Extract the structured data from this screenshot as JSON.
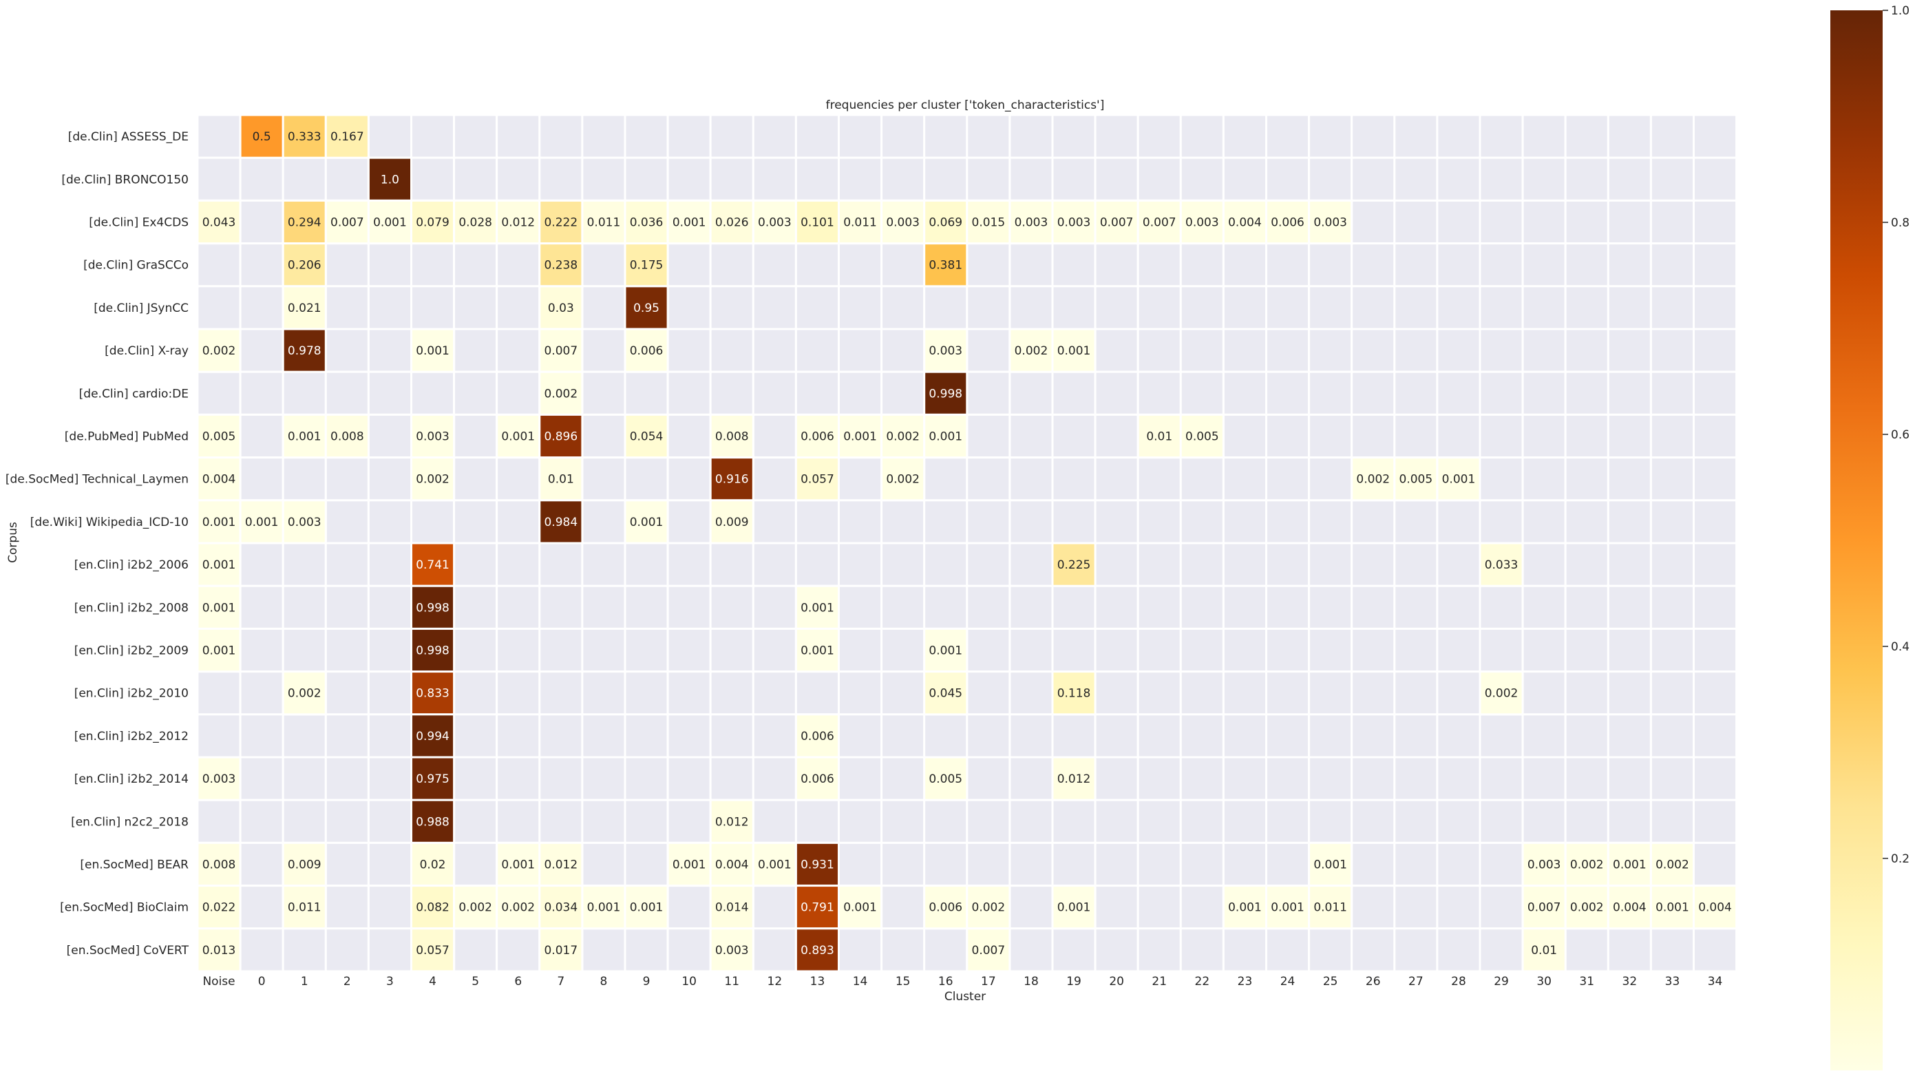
{
  "chart_data": {
    "type": "heatmap",
    "title": "frequencies per cluster ['token_characteristics']",
    "xlabel": "Cluster",
    "ylabel": "Corpus",
    "columns": [
      "Noise",
      "0",
      "1",
      "2",
      "3",
      "4",
      "5",
      "6",
      "7",
      "8",
      "9",
      "10",
      "11",
      "12",
      "13",
      "14",
      "15",
      "16",
      "17",
      "18",
      "19",
      "20",
      "21",
      "22",
      "23",
      "24",
      "25",
      "26",
      "27",
      "28",
      "29",
      "30",
      "31",
      "32",
      "33",
      "34"
    ],
    "rows": [
      "[de.Clin] ASSESS_DE",
      "[de.Clin] BRONCO150",
      "[de.Clin] Ex4CDS",
      "[de.Clin] GraSCCo",
      "[de.Clin] JSynCC",
      "[de.Clin] X-ray",
      "[de.Clin] cardio:DE",
      "[de.PubMed] PubMed",
      "[de.SocMed] Technical_Laymen",
      "[de.Wiki] Wikipedia_ICD-10",
      "[en.Clin] i2b2_2006",
      "[en.Clin] i2b2_2008",
      "[en.Clin] i2b2_2009",
      "[en.Clin] i2b2_2010",
      "[en.Clin] i2b2_2012",
      "[en.Clin] i2b2_2014",
      "[en.Clin] n2c2_2018",
      "[en.SocMed] BEAR",
      "[en.SocMed] BioClaim",
      "[en.SocMed] CoVERT"
    ],
    "cells": [
      [
        0,
        1,
        "0.5"
      ],
      [
        0,
        2,
        "0.333"
      ],
      [
        0,
        3,
        "0.167"
      ],
      [
        1,
        4,
        "1.0"
      ],
      [
        2,
        0,
        "0.043"
      ],
      [
        2,
        2,
        "0.294"
      ],
      [
        2,
        3,
        "0.007"
      ],
      [
        2,
        4,
        "0.001"
      ],
      [
        2,
        5,
        "0.079"
      ],
      [
        2,
        6,
        "0.028"
      ],
      [
        2,
        7,
        "0.012"
      ],
      [
        2,
        8,
        "0.222"
      ],
      [
        2,
        9,
        "0.011"
      ],
      [
        2,
        10,
        "0.036"
      ],
      [
        2,
        11,
        "0.001"
      ],
      [
        2,
        12,
        "0.026"
      ],
      [
        2,
        13,
        "0.003"
      ],
      [
        2,
        14,
        "0.101"
      ],
      [
        2,
        15,
        "0.011"
      ],
      [
        2,
        16,
        "0.003"
      ],
      [
        2,
        17,
        "0.069"
      ],
      [
        2,
        18,
        "0.015"
      ],
      [
        2,
        19,
        "0.003"
      ],
      [
        2,
        20,
        "0.003"
      ],
      [
        2,
        21,
        "0.007"
      ],
      [
        2,
        22,
        "0.007"
      ],
      [
        2,
        23,
        "0.003"
      ],
      [
        2,
        24,
        "0.004"
      ],
      [
        2,
        25,
        "0.006"
      ],
      [
        2,
        26,
        "0.003"
      ],
      [
        3,
        2,
        "0.206"
      ],
      [
        3,
        8,
        "0.238"
      ],
      [
        3,
        10,
        "0.175"
      ],
      [
        3,
        17,
        "0.381"
      ],
      [
        4,
        2,
        "0.021"
      ],
      [
        4,
        8,
        "0.03"
      ],
      [
        4,
        10,
        "0.95"
      ],
      [
        5,
        0,
        "0.002"
      ],
      [
        5,
        2,
        "0.978"
      ],
      [
        5,
        5,
        "0.001"
      ],
      [
        5,
        8,
        "0.007"
      ],
      [
        5,
        10,
        "0.006"
      ],
      [
        5,
        17,
        "0.003"
      ],
      [
        5,
        19,
        "0.002"
      ],
      [
        5,
        20,
        "0.001"
      ],
      [
        6,
        8,
        "0.002"
      ],
      [
        6,
        17,
        "0.998"
      ],
      [
        7,
        0,
        "0.005"
      ],
      [
        7,
        2,
        "0.001"
      ],
      [
        7,
        3,
        "0.008"
      ],
      [
        7,
        5,
        "0.003"
      ],
      [
        7,
        7,
        "0.001"
      ],
      [
        7,
        8,
        "0.896"
      ],
      [
        7,
        10,
        "0.054"
      ],
      [
        7,
        12,
        "0.008"
      ],
      [
        7,
        14,
        "0.006"
      ],
      [
        7,
        15,
        "0.001"
      ],
      [
        7,
        16,
        "0.002"
      ],
      [
        7,
        17,
        "0.001"
      ],
      [
        7,
        22,
        "0.01"
      ],
      [
        7,
        23,
        "0.005"
      ],
      [
        8,
        0,
        "0.004"
      ],
      [
        8,
        5,
        "0.002"
      ],
      [
        8,
        8,
        "0.01"
      ],
      [
        8,
        12,
        "0.916"
      ],
      [
        8,
        14,
        "0.057"
      ],
      [
        8,
        16,
        "0.002"
      ],
      [
        8,
        27,
        "0.002"
      ],
      [
        8,
        28,
        "0.005"
      ],
      [
        8,
        29,
        "0.001"
      ],
      [
        9,
        0,
        "0.001"
      ],
      [
        9,
        1,
        "0.001"
      ],
      [
        9,
        2,
        "0.003"
      ],
      [
        9,
        8,
        "0.984"
      ],
      [
        9,
        10,
        "0.001"
      ],
      [
        9,
        12,
        "0.009"
      ],
      [
        10,
        0,
        "0.001"
      ],
      [
        10,
        5,
        "0.741"
      ],
      [
        10,
        20,
        "0.225"
      ],
      [
        10,
        30,
        "0.033"
      ],
      [
        11,
        0,
        "0.001"
      ],
      [
        11,
        5,
        "0.998"
      ],
      [
        11,
        14,
        "0.001"
      ],
      [
        12,
        0,
        "0.001"
      ],
      [
        12,
        5,
        "0.998"
      ],
      [
        12,
        14,
        "0.001"
      ],
      [
        12,
        17,
        "0.001"
      ],
      [
        13,
        2,
        "0.002"
      ],
      [
        13,
        5,
        "0.833"
      ],
      [
        13,
        17,
        "0.045"
      ],
      [
        13,
        20,
        "0.118"
      ],
      [
        13,
        30,
        "0.002"
      ],
      [
        14,
        5,
        "0.994"
      ],
      [
        14,
        14,
        "0.006"
      ],
      [
        15,
        0,
        "0.003"
      ],
      [
        15,
        5,
        "0.975"
      ],
      [
        15,
        14,
        "0.006"
      ],
      [
        15,
        17,
        "0.005"
      ],
      [
        15,
        20,
        "0.012"
      ],
      [
        16,
        5,
        "0.988"
      ],
      [
        16,
        12,
        "0.012"
      ],
      [
        17,
        0,
        "0.008"
      ],
      [
        17,
        2,
        "0.009"
      ],
      [
        17,
        5,
        "0.02"
      ],
      [
        17,
        7,
        "0.001"
      ],
      [
        17,
        8,
        "0.012"
      ],
      [
        17,
        11,
        "0.001"
      ],
      [
        17,
        12,
        "0.004"
      ],
      [
        17,
        13,
        "0.001"
      ],
      [
        17,
        14,
        "0.931"
      ],
      [
        17,
        26,
        "0.001"
      ],
      [
        17,
        31,
        "0.003"
      ],
      [
        17,
        32,
        "0.002"
      ],
      [
        17,
        33,
        "0.001"
      ],
      [
        17,
        34,
        "0.002"
      ],
      [
        18,
        0,
        "0.022"
      ],
      [
        18,
        2,
        "0.011"
      ],
      [
        18,
        5,
        "0.082"
      ],
      [
        18,
        6,
        "0.002"
      ],
      [
        18,
        7,
        "0.002"
      ],
      [
        18,
        8,
        "0.034"
      ],
      [
        18,
        9,
        "0.001"
      ],
      [
        18,
        10,
        "0.001"
      ],
      [
        18,
        12,
        "0.014"
      ],
      [
        18,
        14,
        "0.791"
      ],
      [
        18,
        15,
        "0.001"
      ],
      [
        18,
        17,
        "0.006"
      ],
      [
        18,
        18,
        "0.002"
      ],
      [
        18,
        20,
        "0.001"
      ],
      [
        18,
        24,
        "0.001"
      ],
      [
        18,
        25,
        "0.001"
      ],
      [
        18,
        26,
        "0.011"
      ],
      [
        18,
        31,
        "0.007"
      ],
      [
        18,
        32,
        "0.002"
      ],
      [
        18,
        33,
        "0.004"
      ],
      [
        18,
        34,
        "0.001"
      ],
      [
        18,
        35,
        "0.004"
      ],
      [
        19,
        0,
        "0.013"
      ],
      [
        19,
        5,
        "0.057"
      ],
      [
        19,
        8,
        "0.017"
      ],
      [
        19,
        12,
        "0.003"
      ],
      [
        19,
        14,
        "0.893"
      ],
      [
        19,
        18,
        "0.007"
      ],
      [
        19,
        31,
        "0.01"
      ]
    ],
    "colorbar": {
      "colormap": "YlOrBr",
      "vmin": 0,
      "vmax": 1,
      "ticks": [
        "0.2",
        "0.4",
        "0.6",
        "0.8",
        "1.0"
      ]
    },
    "colors": {
      "empty_cell": "#eaeaf2",
      "gridline": "#ffffff",
      "dark_text": "#262626",
      "light_text": "#ffffff"
    },
    "grid": true
  }
}
